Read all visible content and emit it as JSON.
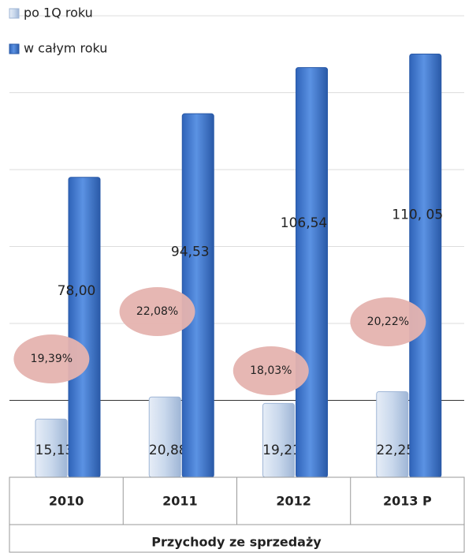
{
  "chart_data": {
    "type": "bar",
    "categories": [
      "2010",
      "2011",
      "2012",
      "2013 P"
    ],
    "x_label": "Przychody ze sprzedaży",
    "series": [
      {
        "name": "po 1Q roku",
        "color": "#c9d8ec",
        "values": [
          15.13,
          20.88,
          19.21,
          22.25
        ],
        "value_labels": [
          "15,13",
          "20,88",
          "19,21",
          "22,25"
        ]
      },
      {
        "name": "w całym roku",
        "color": "#4a7fd4",
        "values": [
          78.0,
          94.53,
          106.54,
          110.05
        ],
        "value_labels": [
          "78,00",
          "94,53",
          "106,54",
          "110, 05"
        ]
      }
    ],
    "annotations": [
      "19,39%",
      "22,08%",
      "18,03%",
      "20,22%"
    ],
    "ylim": [
      0,
      120
    ],
    "yticks": [
      0,
      20,
      40,
      60,
      80,
      100,
      120
    ],
    "grid": true
  }
}
